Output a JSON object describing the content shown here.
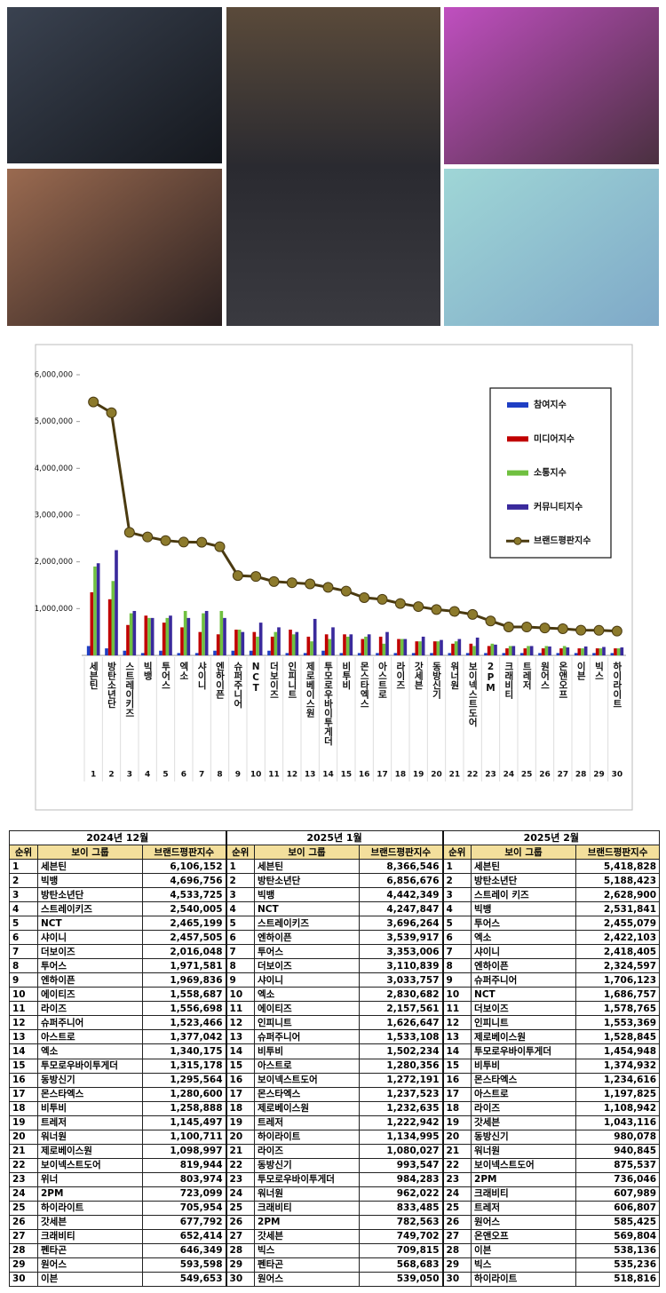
{
  "chart_data": {
    "type": "bar",
    "categories": [
      "세븐틴",
      "방탄소년단",
      "스트레이키즈",
      "빅뱅",
      "투어스",
      "엑소",
      "샤이니",
      "엔하이픈",
      "슈퍼주니어",
      "NCT",
      "더보이즈",
      "인피니트",
      "제로베이스원",
      "투모로우바이투게더",
      "비투비",
      "몬스타엑스",
      "아스트로",
      "라이즈",
      "갓세븐",
      "동방신기",
      "워너원",
      "보이넥스트도어",
      "2PM",
      "크래비티",
      "트레저",
      "원어스",
      "온앤오프",
      "이븐",
      "빅스",
      "하이라이트"
    ],
    "ranks": [
      1,
      2,
      3,
      4,
      5,
      6,
      7,
      8,
      9,
      10,
      11,
      12,
      13,
      14,
      15,
      16,
      17,
      18,
      19,
      20,
      21,
      22,
      23,
      24,
      25,
      26,
      27,
      28,
      29,
      30
    ],
    "ylim": [
      0,
      6000000
    ],
    "yticks": [
      {
        "value": 1000000,
        "label": "1,000,000"
      },
      {
        "value": 2000000,
        "label": "2,000,000"
      },
      {
        "value": 3000000,
        "label": "3,000,000"
      },
      {
        "value": 4000000,
        "label": "4,000,000"
      },
      {
        "value": 5000000,
        "label": "5,000,000"
      },
      {
        "value": 6000000,
        "label": "6,000,000"
      }
    ],
    "legend": "upper right",
    "series": [
      {
        "name": "참여지수",
        "color": "#1f3fc4",
        "values": [
          200000,
          150000,
          100000,
          50000,
          100000,
          50000,
          50000,
          100000,
          100000,
          100000,
          100000,
          50000,
          50000,
          100000,
          50000,
          50000,
          50000,
          50000,
          50000,
          50000,
          50000,
          50000,
          50000,
          50000,
          50000,
          50000,
          50000,
          50000,
          50000,
          50000
        ]
      },
      {
        "name": "미디어지수",
        "color": "#c00000",
        "values": [
          1350000,
          1200000,
          650000,
          850000,
          700000,
          600000,
          500000,
          450000,
          550000,
          500000,
          400000,
          550000,
          400000,
          450000,
          450000,
          350000,
          400000,
          350000,
          300000,
          300000,
          250000,
          250000,
          200000,
          150000,
          150000,
          150000,
          150000,
          150000,
          150000,
          150000
        ]
      },
      {
        "name": "소통지수",
        "color": "#70c040",
        "values": [
          1900000,
          1590000,
          900000,
          800000,
          800000,
          950000,
          900000,
          950000,
          550000,
          400000,
          500000,
          450000,
          300000,
          350000,
          400000,
          400000,
          250000,
          350000,
          300000,
          300000,
          300000,
          200000,
          250000,
          200000,
          200000,
          200000,
          200000,
          150000,
          150000,
          150000
        ]
      },
      {
        "name": "커뮤니티지수",
        "color": "#3a2a9c",
        "values": [
          1970000,
          2250000,
          950000,
          800000,
          850000,
          800000,
          950000,
          800000,
          500000,
          700000,
          600000,
          500000,
          780000,
          600000,
          450000,
          450000,
          500000,
          350000,
          400000,
          330000,
          350000,
          380000,
          230000,
          200000,
          200000,
          190000,
          170000,
          190000,
          180000,
          170000
        ]
      },
      {
        "name": "브랜드평판지수",
        "type": "line",
        "color": "#4a3a10",
        "marker_color": "#8c7a2c",
        "values": [
          5418828,
          5188423,
          2628900,
          2531841,
          2455079,
          2422103,
          2418405,
          2324597,
          1706123,
          1686757,
          1578765,
          1553369,
          1528845,
          1454948,
          1374932,
          1234616,
          1197825,
          1108942,
          1043116,
          980078,
          940845,
          875537,
          736046,
          607989,
          606807,
          585425,
          569804,
          538136,
          535236,
          518816
        ]
      }
    ]
  },
  "table": {
    "columns": [
      "순위",
      "보이 그룹",
      "브랜드평판지수"
    ],
    "months": [
      {
        "title": "2024년 12월",
        "rows": [
          [
            1,
            "세븐틴",
            "6,106,152"
          ],
          [
            2,
            "빅뱅",
            "4,696,756"
          ],
          [
            3,
            "방탄소년단",
            "4,533,725"
          ],
          [
            4,
            "스트레이키즈",
            "2,540,005"
          ],
          [
            5,
            "NCT",
            "2,465,199"
          ],
          [
            6,
            "샤이니",
            "2,457,505"
          ],
          [
            7,
            "더보이즈",
            "2,016,048"
          ],
          [
            8,
            "투어스",
            "1,971,581"
          ],
          [
            9,
            "엔하이픈",
            "1,969,836"
          ],
          [
            10,
            "에이티즈",
            "1,558,687"
          ],
          [
            11,
            "라이즈",
            "1,556,698"
          ],
          [
            12,
            "슈퍼주니어",
            "1,523,466"
          ],
          [
            13,
            "아스트로",
            "1,377,042"
          ],
          [
            14,
            "엑소",
            "1,340,175"
          ],
          [
            15,
            "투모로우바이투게더",
            "1,315,178"
          ],
          [
            16,
            "동방신기",
            "1,295,564"
          ],
          [
            17,
            "몬스타엑스",
            "1,280,600"
          ],
          [
            18,
            "비투비",
            "1,258,888"
          ],
          [
            19,
            "트레저",
            "1,145,497"
          ],
          [
            20,
            "워너원",
            "1,100,711"
          ],
          [
            21,
            "제로베이스원",
            "1,098,997"
          ],
          [
            22,
            "보이넥스트도어",
            "819,944"
          ],
          [
            23,
            "위너",
            "803,974"
          ],
          [
            24,
            "2PM",
            "723,099"
          ],
          [
            25,
            "하이라이트",
            "705,954"
          ],
          [
            26,
            "갓세븐",
            "677,792"
          ],
          [
            27,
            "크래비티",
            "652,414"
          ],
          [
            28,
            "펜타곤",
            "646,349"
          ],
          [
            29,
            "원어스",
            "593,598"
          ],
          [
            30,
            "이븐",
            "549,653"
          ]
        ]
      },
      {
        "title": "2025년 1월",
        "rows": [
          [
            1,
            "세븐틴",
            "8,366,546"
          ],
          [
            2,
            "방탄소년단",
            "6,856,676"
          ],
          [
            3,
            "빅뱅",
            "4,442,349"
          ],
          [
            4,
            "NCT",
            "4,247,847"
          ],
          [
            5,
            "스트레이키즈",
            "3,696,264"
          ],
          [
            6,
            "엔하이픈",
            "3,539,917"
          ],
          [
            7,
            "투어스",
            "3,353,006"
          ],
          [
            8,
            "더보이즈",
            "3,110,839"
          ],
          [
            9,
            "샤이니",
            "3,033,757"
          ],
          [
            10,
            "엑소",
            "2,830,682"
          ],
          [
            11,
            "에이티즈",
            "2,157,561"
          ],
          [
            12,
            "인피니트",
            "1,626,647"
          ],
          [
            13,
            "슈퍼주니어",
            "1,533,108"
          ],
          [
            14,
            "비투비",
            "1,502,234"
          ],
          [
            15,
            "아스트로",
            "1,280,356"
          ],
          [
            16,
            "보이넥스트도어",
            "1,272,191"
          ],
          [
            17,
            "몬스타엑스",
            "1,237,523"
          ],
          [
            18,
            "제로베이스원",
            "1,232,635"
          ],
          [
            19,
            "트레저",
            "1,222,942"
          ],
          [
            20,
            "하이라이트",
            "1,134,995"
          ],
          [
            21,
            "라이즈",
            "1,080,027"
          ],
          [
            22,
            "동방신기",
            "993,547"
          ],
          [
            23,
            "투모로우바이투게더",
            "984,283"
          ],
          [
            24,
            "워너원",
            "962,022"
          ],
          [
            25,
            "크래비티",
            "833,485"
          ],
          [
            26,
            "2PM",
            "782,563"
          ],
          [
            27,
            "갓세븐",
            "749,702"
          ],
          [
            28,
            "빅스",
            "709,815"
          ],
          [
            29,
            "펜타곤",
            "568,683"
          ],
          [
            30,
            "원어스",
            "539,050"
          ]
        ]
      },
      {
        "title": "2025년 2월",
        "rows": [
          [
            1,
            "세븐틴",
            "5,418,828"
          ],
          [
            2,
            "방탄소년단",
            "5,188,423"
          ],
          [
            3,
            "스트레이 키즈",
            "2,628,900"
          ],
          [
            4,
            "빅뱅",
            "2,531,841"
          ],
          [
            5,
            "투어스",
            "2,455,079"
          ],
          [
            6,
            "엑소",
            "2,422,103"
          ],
          [
            7,
            "샤이니",
            "2,418,405"
          ],
          [
            8,
            "엔하이픈",
            "2,324,597"
          ],
          [
            9,
            "슈퍼주니어",
            "1,706,123"
          ],
          [
            10,
            "NCT",
            "1,686,757"
          ],
          [
            11,
            "더보이즈",
            "1,578,765"
          ],
          [
            12,
            "인피니트",
            "1,553,369"
          ],
          [
            13,
            "제로베이스원",
            "1,528,845"
          ],
          [
            14,
            "투모로우바이투게더",
            "1,454,948"
          ],
          [
            15,
            "비투비",
            "1,374,932"
          ],
          [
            16,
            "몬스타엑스",
            "1,234,616"
          ],
          [
            17,
            "아스트로",
            "1,197,825"
          ],
          [
            18,
            "라이즈",
            "1,108,942"
          ],
          [
            19,
            "갓세븐",
            "1,043,116"
          ],
          [
            20,
            "동방신기",
            "980,078"
          ],
          [
            21,
            "워너원",
            "940,845"
          ],
          [
            22,
            "보이넥스트도어",
            "875,537"
          ],
          [
            23,
            "2PM",
            "736,046"
          ],
          [
            24,
            "크래비티",
            "607,989"
          ],
          [
            25,
            "트레저",
            "606,807"
          ],
          [
            26,
            "원어스",
            "585,425"
          ],
          [
            27,
            "온앤오프",
            "569,804"
          ],
          [
            28,
            "이븐",
            "538,136"
          ],
          [
            29,
            "빅스",
            "535,236"
          ],
          [
            30,
            "하이라이트",
            "518,816"
          ]
        ]
      }
    ]
  }
}
